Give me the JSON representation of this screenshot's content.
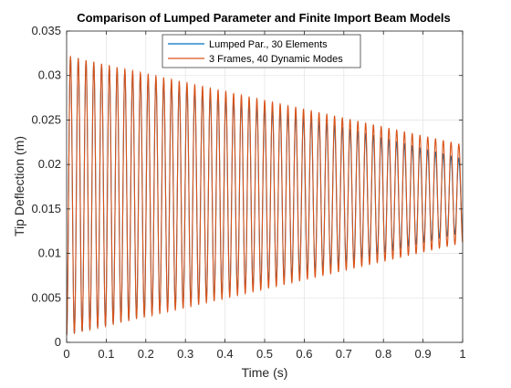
{
  "chart_data": {
    "type": "line",
    "title": "Comparison of Lumped Parameter and Finite Import Beam Models",
    "xlabel": "Time (s)",
    "ylabel": "Tip Deflection (m)",
    "xlim": [
      0,
      1
    ],
    "ylim": [
      0,
      0.035
    ],
    "xticks": [
      "0",
      "0.1",
      "0.2",
      "0.3",
      "0.4",
      "0.5",
      "0.6",
      "0.7",
      "0.8",
      "0.9",
      "1"
    ],
    "yticks": [
      "0",
      "0.005",
      "0.01",
      "0.015",
      "0.02",
      "0.025",
      "0.03",
      "0.035"
    ],
    "grid": true,
    "legend_position": "top-center",
    "oscillation_frequency_hz": 51,
    "series": [
      {
        "name": "Lumped Par., 30 Elements",
        "color": "#0072BD",
        "envelope": {
          "t": [
            0,
            1
          ],
          "max": [
            0.0322,
            0.0206
          ],
          "min": [
            0.0008,
            0.0124
          ]
        }
      },
      {
        "name": "3 Frames, 40 Dynamic Modes",
        "color": "#D95319",
        "envelope": {
          "t": [
            0,
            1
          ],
          "max": [
            0.0322,
            0.0222
          ],
          "min": [
            0.0008,
            0.0112
          ]
        }
      }
    ]
  }
}
